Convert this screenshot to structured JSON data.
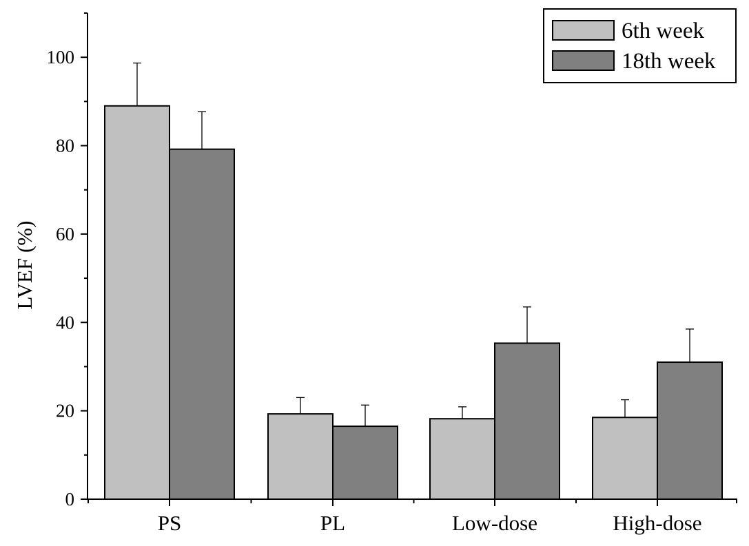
{
  "chart_data": {
    "type": "bar",
    "title": "",
    "xlabel": "",
    "ylabel": "LVEF (%)",
    "ylim": [
      0,
      110
    ],
    "yticks": [
      0,
      20,
      40,
      60,
      80,
      100
    ],
    "categories": [
      "PS",
      "PL",
      "Low-dose",
      "High-dose"
    ],
    "series": [
      {
        "name": "6th week",
        "color": "#c0c0c0",
        "values": [
          89,
          19.3,
          18.2,
          18.5
        ],
        "errors": [
          9.7,
          3.7,
          2.7,
          4
        ]
      },
      {
        "name": "18th week",
        "color": "#808080",
        "values": [
          79.2,
          16.5,
          35.3,
          31
        ],
        "errors": [
          8.5,
          4.8,
          8.2,
          7.5
        ]
      }
    ],
    "grid": false,
    "legend_position": "top-right"
  }
}
